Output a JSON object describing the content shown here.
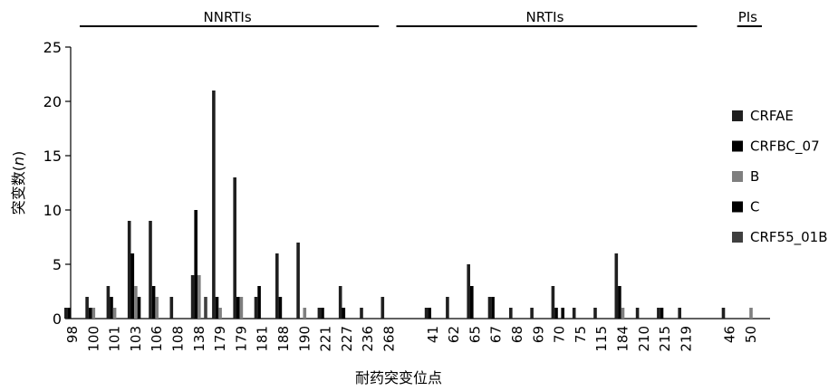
{
  "chart_data": {
    "type": "bar",
    "title": "",
    "xlabel": "耐药突变位点",
    "ylabel": "突变数(n)",
    "ylabel_parts": {
      "prefix": "突变数(",
      "var": "n",
      "suffix": ")"
    },
    "ylim": [
      0,
      25
    ],
    "yticks": [
      0,
      5,
      10,
      15,
      20,
      25
    ],
    "grid": false,
    "legend_position": "right",
    "groups": [
      {
        "name": "NNRTIs",
        "from": 0,
        "to": 14
      },
      {
        "name": "NRTIs",
        "from": 15,
        "to": 28
      },
      {
        "name": "PIs",
        "from": 29,
        "to": 30
      }
    ],
    "categories": [
      "98",
      "100",
      "101",
      "103",
      "106",
      "108",
      "138",
      "179",
      "179",
      "181",
      "188",
      "190",
      "221",
      "227",
      "236",
      "268",
      "41",
      "62",
      "65",
      "67",
      "68",
      "69",
      "70",
      "75",
      "115",
      "184",
      "210",
      "215",
      "219",
      "46",
      "50"
    ],
    "category_gap_after": [
      15,
      28
    ],
    "series": [
      {
        "name": "CRFAE",
        "color": "#1f1f1f",
        "values": [
          1,
          2,
          3,
          9,
          9,
          2,
          4,
          21,
          13,
          2,
          6,
          7,
          1,
          3,
          1,
          2,
          1,
          2,
          5,
          2,
          1,
          1,
          3,
          1,
          1,
          6,
          1,
          1,
          1,
          1,
          0
        ]
      },
      {
        "name": "CRFBC_07",
        "color": "#000000",
        "values": [
          1,
          1,
          2,
          6,
          3,
          0,
          10,
          2,
          2,
          3,
          2,
          0,
          1,
          1,
          0,
          0,
          1,
          0,
          3,
          2,
          0,
          0,
          1,
          0,
          0,
          3,
          0,
          1,
          0,
          0,
          0
        ]
      },
      {
        "name": "B",
        "color": "#7f7f7f",
        "values": [
          0,
          1,
          1,
          3,
          2,
          0,
          4,
          1,
          2,
          0,
          0,
          1,
          0,
          0,
          0,
          0,
          0,
          0,
          0,
          0,
          0,
          0,
          0,
          0,
          0,
          1,
          0,
          0,
          0,
          0,
          1
        ]
      },
      {
        "name": "C",
        "color": "#000000",
        "values": [
          0,
          0,
          0,
          2,
          0,
          0,
          0,
          0,
          0,
          0,
          0,
          0,
          0,
          0,
          0,
          0,
          0,
          0,
          0,
          0,
          0,
          0,
          1,
          0,
          0,
          0,
          0,
          0,
          0,
          0,
          0
        ]
      },
      {
        "name": "CRF55_01B",
        "color": "#3f3f3f",
        "values": [
          0,
          0,
          0,
          0,
          0,
          0,
          2,
          0,
          0,
          0,
          0,
          0,
          0,
          0,
          0,
          0,
          0,
          0,
          0,
          0,
          0,
          0,
          0,
          0,
          0,
          0,
          0,
          0,
          0,
          0,
          0
        ]
      }
    ]
  }
}
